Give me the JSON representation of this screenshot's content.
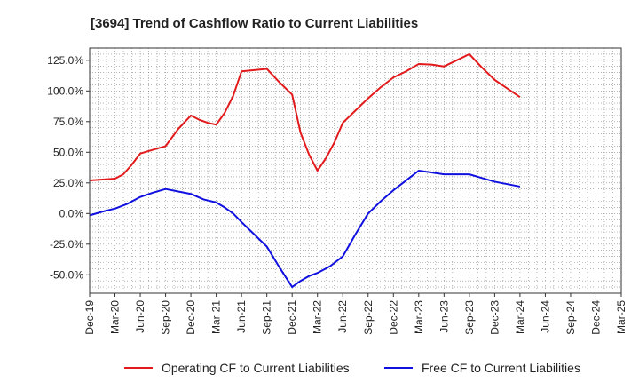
{
  "chart_data": {
    "type": "line",
    "title": "[3694]  Trend of Cashflow Ratio to Current Liabilities",
    "xlabel": "",
    "ylabel": "",
    "ylim": [
      -65,
      135
    ],
    "y_ticks": [
      -50,
      -25,
      0,
      25,
      50,
      75,
      100,
      125
    ],
    "y_tick_labels": [
      "-50.0%",
      "-25.0%",
      "0.0%",
      "25.0%",
      "50.0%",
      "75.0%",
      "100.0%",
      "125.0%"
    ],
    "x_tick_labels": [
      "Dec-19",
      "Mar-20",
      "Jun-20",
      "Sep-20",
      "Dec-20",
      "Mar-21",
      "Jun-21",
      "Sep-21",
      "Dec-21",
      "Mar-22",
      "Jun-22",
      "Sep-22",
      "Dec-22",
      "Mar-23",
      "Jun-23",
      "Sep-23",
      "Dec-23",
      "Mar-24",
      "Jun-24",
      "Sep-24",
      "Dec-24",
      "Mar-25"
    ],
    "grid": true,
    "legend_position": "bottom",
    "series": [
      {
        "name": "Operating CF to Current Liabilities",
        "color": "#e31a1c",
        "points": [
          [
            0,
            27
          ],
          [
            1,
            28.5
          ],
          [
            1.33,
            32
          ],
          [
            1.67,
            40
          ],
          [
            2,
            49
          ],
          [
            2.33,
            51
          ],
          [
            3,
            55
          ],
          [
            3.5,
            69
          ],
          [
            4,
            80
          ],
          [
            4.33,
            76.5
          ],
          [
            4.67,
            74
          ],
          [
            5,
            72.5
          ],
          [
            5.33,
            82
          ],
          [
            5.67,
            96
          ],
          [
            6,
            116
          ],
          [
            6.5,
            117
          ],
          [
            7,
            118
          ],
          [
            7.5,
            107
          ],
          [
            8,
            97
          ],
          [
            8.33,
            66
          ],
          [
            8.67,
            48
          ],
          [
            9,
            35
          ],
          [
            9.33,
            45
          ],
          [
            9.67,
            58
          ],
          [
            10,
            74
          ],
          [
            10.5,
            84
          ],
          [
            11,
            94
          ],
          [
            11.5,
            103
          ],
          [
            12,
            111
          ],
          [
            12.5,
            116
          ],
          [
            13,
            122
          ],
          [
            13.5,
            121.5
          ],
          [
            14,
            120
          ],
          [
            14.5,
            125
          ],
          [
            15,
            130
          ],
          [
            15.5,
            119
          ],
          [
            16,
            109
          ],
          [
            16.5,
            102
          ],
          [
            17,
            95
          ]
        ]
      },
      {
        "name": "Free CF to Current Liabilities",
        "color": "#1010e0",
        "points": [
          [
            0,
            -1.5
          ],
          [
            0.5,
            1.5
          ],
          [
            1,
            4
          ],
          [
            1.5,
            8
          ],
          [
            2,
            13.5
          ],
          [
            2.5,
            17
          ],
          [
            3,
            20
          ],
          [
            3.5,
            18
          ],
          [
            4,
            16
          ],
          [
            4.5,
            11.5
          ],
          [
            5,
            9
          ],
          [
            5.33,
            5
          ],
          [
            5.67,
            0
          ],
          [
            6,
            -7
          ],
          [
            6.5,
            -17
          ],
          [
            7,
            -27
          ],
          [
            7.5,
            -44
          ],
          [
            8,
            -60
          ],
          [
            8.33,
            -55
          ],
          [
            8.67,
            -51
          ],
          [
            9,
            -48.5
          ],
          [
            9.5,
            -43
          ],
          [
            10,
            -35
          ],
          [
            10.5,
            -17
          ],
          [
            11,
            0
          ],
          [
            11.5,
            10
          ],
          [
            12,
            19
          ],
          [
            12.5,
            27
          ],
          [
            13,
            35
          ],
          [
            13.5,
            33.5
          ],
          [
            14,
            32
          ],
          [
            14.5,
            32
          ],
          [
            15,
            32
          ],
          [
            15.5,
            29
          ],
          [
            16,
            26
          ],
          [
            16.5,
            24
          ],
          [
            17,
            22
          ]
        ]
      }
    ]
  }
}
